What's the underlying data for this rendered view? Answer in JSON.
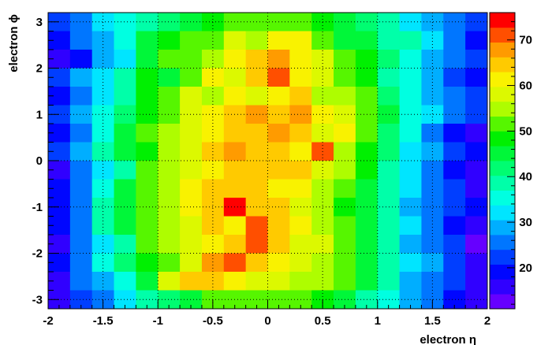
{
  "chart_data": {
    "type": "heatmap",
    "title": "",
    "xlabel": "electron η",
    "ylabel": "electron ϕ",
    "xlim": [
      -2,
      2
    ],
    "ylim": [
      -3.2,
      3.2
    ],
    "x_ticks": [
      "-2",
      "-1.5",
      "-1",
      "-0.5",
      "0",
      "0.5",
      "1",
      "1.5",
      "2"
    ],
    "y_ticks": [
      "3",
      "2",
      "1",
      "0",
      "-1",
      "-2",
      "-3"
    ],
    "grid": true,
    "colorbar": {
      "min": 11,
      "max": 76,
      "ticks": [
        "20",
        "30",
        "40",
        "50",
        "60",
        "70"
      ]
    },
    "nx": 20,
    "ny": 16,
    "values": [
      [
        21,
        27,
        32,
        35,
        39,
        43,
        45,
        48,
        50,
        52,
        53,
        52,
        49,
        46,
        42,
        38,
        33,
        29,
        25,
        21
      ],
      [
        18,
        24,
        30,
        36,
        44,
        48,
        52,
        51,
        58,
        55,
        62,
        60,
        50,
        46,
        44,
        40,
        37,
        32,
        24,
        19
      ],
      [
        17,
        20,
        28,
        33,
        46,
        50,
        52,
        56,
        60,
        64,
        67,
        62,
        57,
        52,
        47,
        41,
        34,
        30,
        26,
        21
      ],
      [
        22,
        28,
        33,
        38,
        48,
        46,
        51,
        62,
        59,
        66,
        70,
        62,
        58,
        50,
        47,
        40,
        35,
        28,
        22,
        20
      ],
      [
        20,
        26,
        33,
        40,
        47,
        51,
        58,
        55,
        61,
        57,
        60,
        66,
        54,
        55,
        50,
        43,
        34,
        30,
        24,
        22
      ],
      [
        23,
        30,
        36,
        43,
        49,
        53,
        58,
        60,
        63,
        67,
        64,
        68,
        60,
        57,
        51,
        44,
        36,
        31,
        25,
        21
      ],
      [
        18,
        27,
        35,
        44,
        50,
        54,
        57,
        62,
        66,
        64,
        67,
        63,
        58,
        60,
        50,
        42,
        34,
        26,
        20,
        17
      ],
      [
        21,
        29,
        38,
        45,
        49,
        55,
        58,
        63,
        67,
        65,
        66,
        62,
        71,
        54,
        48,
        41,
        33,
        28,
        22,
        18
      ],
      [
        16,
        24,
        31,
        40,
        50,
        54,
        58,
        62,
        65,
        66,
        64,
        63,
        57,
        55,
        48,
        40,
        31,
        25,
        20,
        15
      ],
      [
        19,
        26,
        35,
        44,
        51,
        55,
        60,
        63,
        66,
        64,
        62,
        61,
        56,
        52,
        46,
        40,
        32,
        27,
        21,
        17
      ],
      [
        18,
        26,
        37,
        45,
        52,
        55,
        61,
        64,
        73,
        66,
        63,
        58,
        55,
        49,
        44,
        38,
        30,
        24,
        21,
        18
      ],
      [
        18,
        27,
        38,
        44,
        51,
        56,
        59,
        66,
        62,
        70,
        65,
        60,
        56,
        52,
        45,
        40,
        31,
        26,
        20,
        16
      ],
      [
        16,
        24,
        31,
        40,
        50,
        54,
        58,
        60,
        66,
        72,
        66,
        59,
        57,
        50,
        46,
        38,
        30,
        24,
        21,
        14
      ],
      [
        19,
        27,
        36,
        43,
        49,
        53,
        57,
        67,
        70,
        63,
        60,
        58,
        55,
        50,
        45,
        40,
        32,
        28,
        22,
        16
      ],
      [
        17,
        24,
        30,
        36,
        44,
        59,
        64,
        63,
        60,
        59,
        57,
        55,
        54,
        51,
        45,
        37,
        30,
        25,
        21,
        17
      ],
      [
        16,
        22,
        27,
        33,
        39,
        43,
        46,
        50,
        52,
        53,
        52,
        51,
        48,
        45,
        40,
        35,
        28,
        24,
        19,
        16
      ]
    ]
  }
}
